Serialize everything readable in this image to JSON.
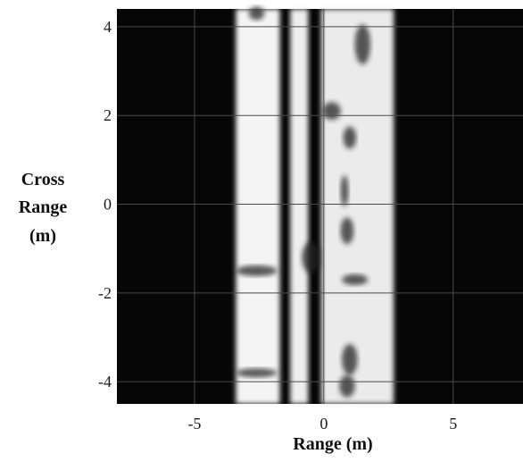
{
  "chart_data": {
    "type": "heatmap",
    "title": "",
    "xlabel": "Range (m)",
    "ylabel_lines": [
      "Cross",
      "Range",
      "(m)"
    ],
    "xlim": [
      -8,
      7.7
    ],
    "ylim": [
      -4.5,
      4.4
    ],
    "x_ticks": [
      {
        "value": -5,
        "label": "-5"
      },
      {
        "value": 0,
        "label": "0"
      },
      {
        "value": 5,
        "label": "5"
      }
    ],
    "y_ticks": [
      {
        "value": 4,
        "label": "4"
      },
      {
        "value": 2,
        "label": "2"
      },
      {
        "value": 0,
        "label": "0"
      },
      {
        "value": -2,
        "label": "-2"
      },
      {
        "value": -4,
        "label": "-4"
      }
    ],
    "grid": true,
    "colormap": "grayscale, dark background with bright returns",
    "colors": {
      "background": "#060606",
      "bright": "#f2f2f2",
      "grid": "#4a4a4a"
    },
    "bright_bands": [
      {
        "x_range": [
          -3.4,
          -1.7
        ],
        "intensity": 0.92
      },
      {
        "x_range": [
          -1.3,
          -0.6
        ],
        "intensity": 0.88
      },
      {
        "x_range": [
          -0.1,
          2.7
        ],
        "intensity": 0.85
      }
    ],
    "dark_features": [
      {
        "x": -2.6,
        "y": 4.3,
        "rx": 0.3,
        "ry": 0.15
      },
      {
        "x": 0.3,
        "y": 2.1,
        "rx": 0.35,
        "ry": 0.2
      },
      {
        "x": 1.0,
        "y": 1.5,
        "rx": 0.25,
        "ry": 0.25
      },
      {
        "x": 0.8,
        "y": 0.3,
        "rx": 0.15,
        "ry": 0.35
      },
      {
        "x": -0.5,
        "y": -1.2,
        "rx": 0.35,
        "ry": 0.35
      },
      {
        "x": 0.9,
        "y": -0.6,
        "rx": 0.25,
        "ry": 0.3
      },
      {
        "x": 1.2,
        "y": -1.7,
        "rx": 0.5,
        "ry": 0.12
      },
      {
        "x": 1.0,
        "y": -3.5,
        "rx": 0.3,
        "ry": 0.35
      },
      {
        "x": 0.9,
        "y": -4.1,
        "rx": 0.3,
        "ry": 0.25
      },
      {
        "x": -2.6,
        "y": -1.5,
        "rx": 0.8,
        "ry": 0.12
      },
      {
        "x": -2.6,
        "y": -3.8,
        "rx": 0.8,
        "ry": 0.1
      },
      {
        "x": 1.5,
        "y": 3.6,
        "rx": 0.3,
        "ry": 0.45
      }
    ]
  }
}
